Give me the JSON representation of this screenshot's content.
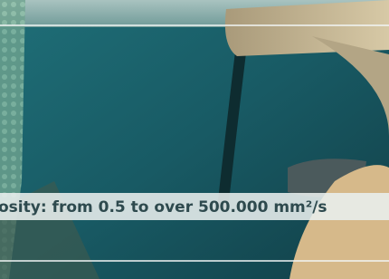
{
  "caption": "osity: from 0.5 to over 500.000 mm²/s"
}
